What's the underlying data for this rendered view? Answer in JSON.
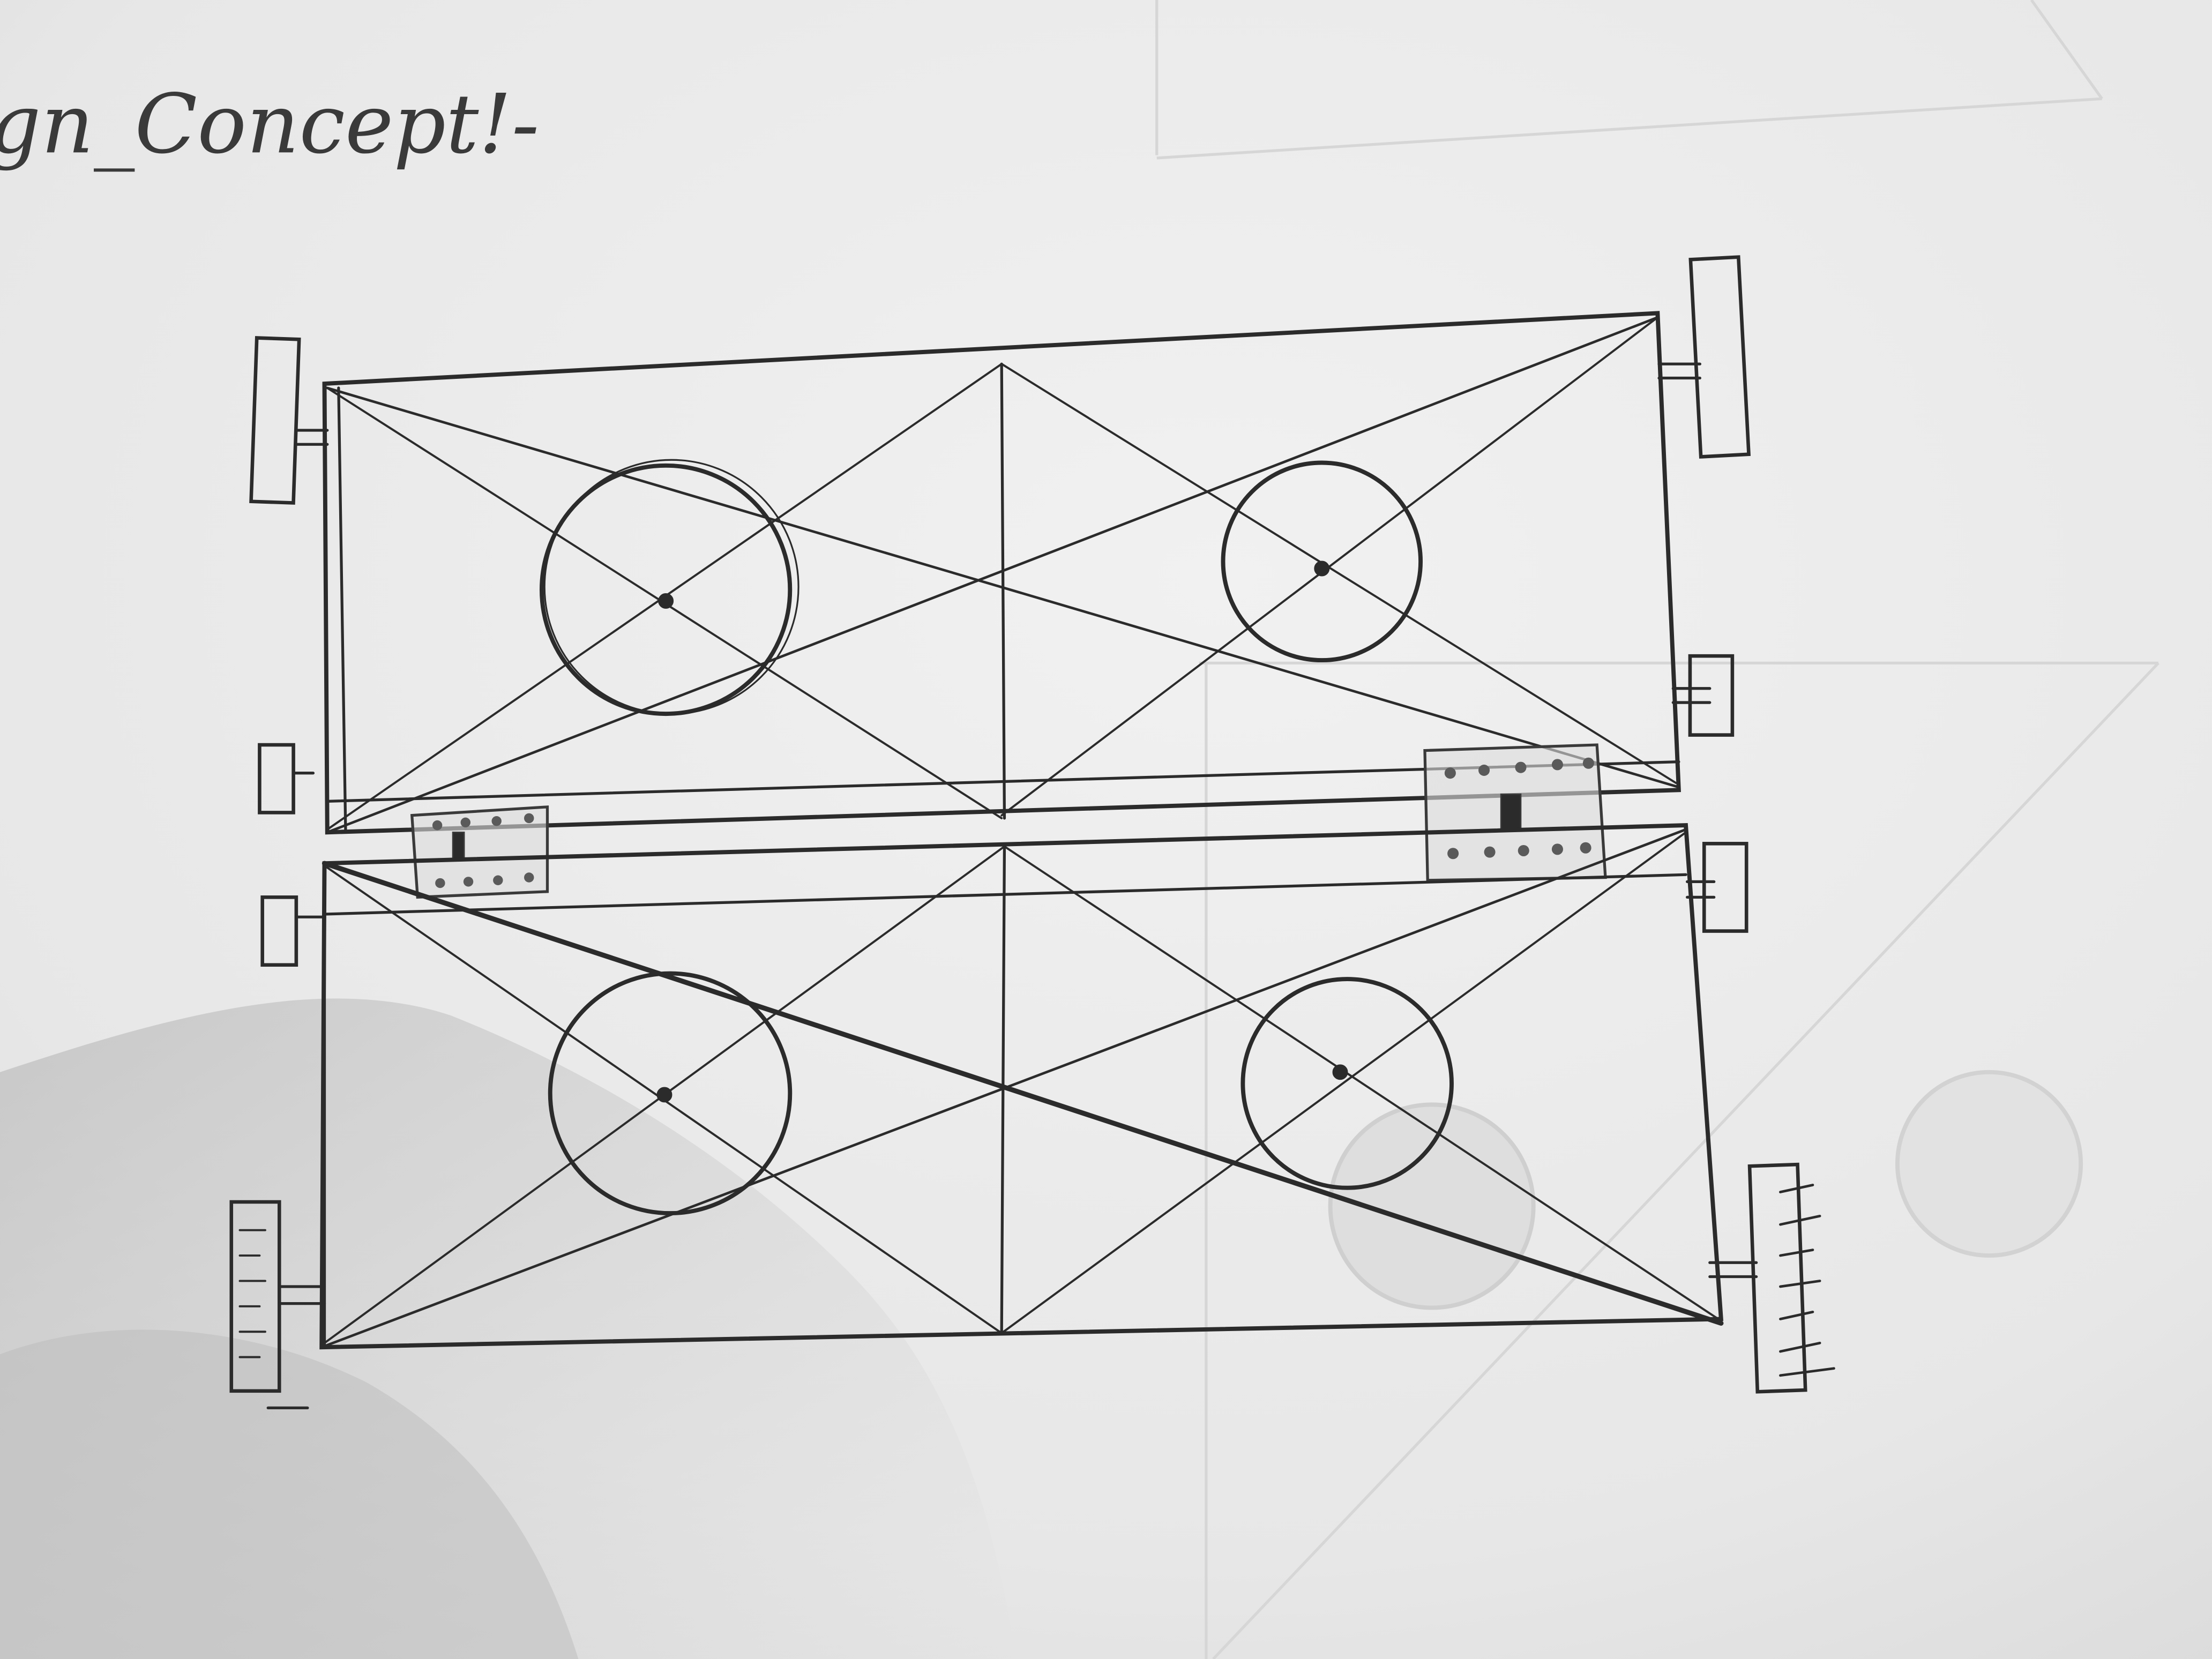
{
  "sheet": {
    "heading": "gn_Concept!-",
    "paper_color": "#ececec",
    "pencil_color": "#2b2b2b"
  },
  "sketch": {
    "panels": [
      {
        "name": "upper-panel",
        "features": [
          "rectangle-frame",
          "diagonal-cross-lines",
          "center-vertical-line",
          "circle-left",
          "circle-right",
          "mounting-bracket-top-left",
          "mounting-bracket-top-right",
          "small-bracket-bottom-left",
          "small-bracket-right"
        ]
      },
      {
        "name": "lower-panel",
        "features": [
          "rectangle-frame",
          "diagonal-cross-lines",
          "center-vertical-line",
          "circle-left",
          "circle-right",
          "scaled-bracket-left",
          "scaled-bracket-right",
          "small-bracket-top-left",
          "small-bracket-top-right"
        ]
      }
    ],
    "connectors": [
      "hinge-plate-left",
      "hinge-plate-right"
    ]
  }
}
